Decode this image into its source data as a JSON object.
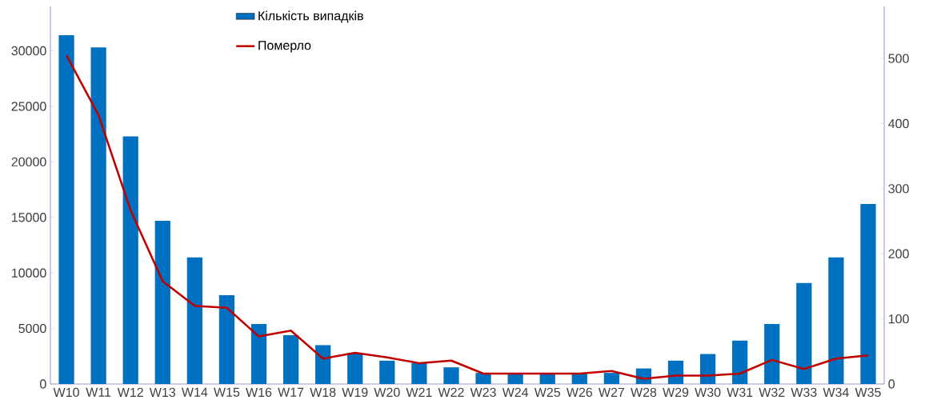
{
  "chart_data": {
    "type": "bar",
    "categories": [
      "W10",
      "W11",
      "W12",
      "W13",
      "W14",
      "W15",
      "W16",
      "W17",
      "W18",
      "W19",
      "W20",
      "W21",
      "W22",
      "W23",
      "W24",
      "W25",
      "W26",
      "W27",
      "W28",
      "W29",
      "W30",
      "W31",
      "W32",
      "W33",
      "W34",
      "W35"
    ],
    "series": [
      {
        "name": "Кількість випадків",
        "axis": "y",
        "color": "#0070c0",
        "values": [
          31400,
          30300,
          22300,
          14700,
          11400,
          8000,
          5400,
          4400,
          3500,
          2800,
          2100,
          1900,
          1500,
          1000,
          1000,
          1000,
          1000,
          1000,
          1400,
          2100,
          2700,
          3900,
          5400,
          9100,
          11400,
          16200
        ]
      },
      {
        "name": "Померло",
        "type": "line",
        "axis": "y2",
        "color": "#c00000",
        "values": [
          505,
          413,
          267,
          158,
          120,
          117,
          73,
          82,
          39,
          48,
          41,
          32,
          36,
          16,
          16,
          16,
          16,
          20,
          8,
          13,
          13,
          16,
          37,
          23,
          39,
          44
        ]
      }
    ],
    "ylim": [
      0,
      34000
    ],
    "yticks": [
      0,
      5000,
      10000,
      15000,
      20000,
      25000,
      30000
    ],
    "y2lim": [
      0,
      580
    ],
    "y2ticks": [
      0,
      100,
      200,
      300,
      400,
      500
    ],
    "legend": "top",
    "grid": false,
    "marker": "none"
  }
}
